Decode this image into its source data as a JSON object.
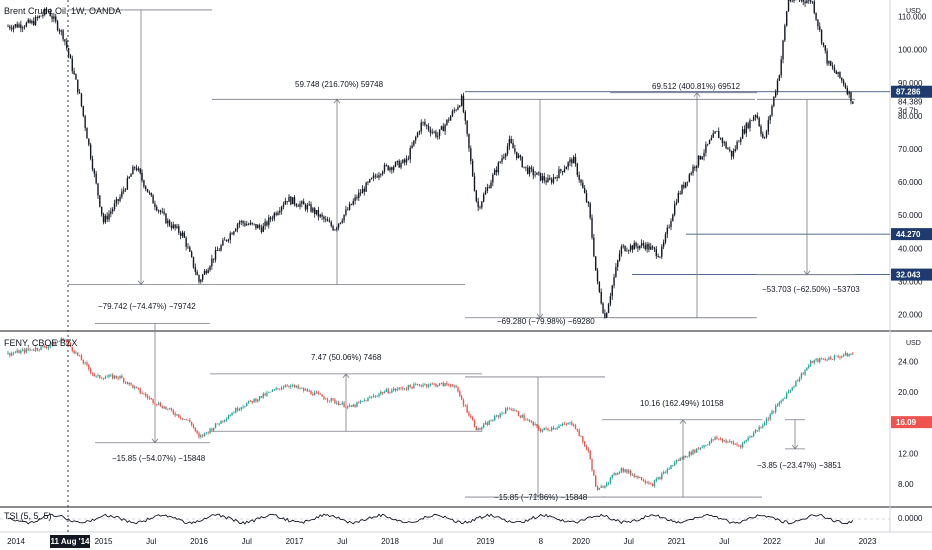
{
  "chart_data": [
    {
      "type": "candlestick",
      "title": "Brent Crude Oil, 1W, OANDA",
      "currency": "USD",
      "y_ticks": [
        "110.000",
        "100.000",
        "90.000",
        "80.000",
        "70.000",
        "60.000",
        "50.000",
        "40.000",
        "30.000",
        "20.000"
      ],
      "y_tick_values": [
        110,
        100,
        90,
        80,
        70,
        60,
        50,
        40,
        30,
        20
      ],
      "ylim": [
        15,
        115
      ],
      "price_path": [
        [
          "2014-01",
          107
        ],
        [
          "2014-04",
          108
        ],
        [
          "2014-06",
          112
        ],
        [
          "2014-08",
          104
        ],
        [
          "2014-10",
          86
        ],
        [
          "2014-12",
          60
        ],
        [
          "2015-01",
          48
        ],
        [
          "2015-03",
          55
        ],
        [
          "2015-05",
          65
        ],
        [
          "2015-07",
          55
        ],
        [
          "2015-09",
          48
        ],
        [
          "2015-11",
          44
        ],
        [
          "2016-01",
          30
        ],
        [
          "2016-03",
          38
        ],
        [
          "2016-06",
          48
        ],
        [
          "2016-09",
          46
        ],
        [
          "2016-12",
          55
        ],
        [
          "2017-03",
          52
        ],
        [
          "2017-06",
          46
        ],
        [
          "2017-09",
          56
        ],
        [
          "2017-12",
          64
        ],
        [
          "2018-03",
          66
        ],
        [
          "2018-05",
          78
        ],
        [
          "2018-07",
          74
        ],
        [
          "2018-10",
          85
        ],
        [
          "2018-12",
          52
        ],
        [
          "2019-02",
          62
        ],
        [
          "2019-04",
          72
        ],
        [
          "2019-06",
          64
        ],
        [
          "2019-09",
          60
        ],
        [
          "2019-12",
          67
        ],
        [
          "2020-02",
          52
        ],
        [
          "2020-03",
          30
        ],
        [
          "2020-04",
          19
        ],
        [
          "2020-06",
          40
        ],
        [
          "2020-09",
          41
        ],
        [
          "2020-11",
          38
        ],
        [
          "2021-01",
          55
        ],
        [
          "2021-03",
          64
        ],
        [
          "2021-06",
          75
        ],
        [
          "2021-08",
          68
        ],
        [
          "2021-09",
          74
        ],
        [
          "2021-11",
          81
        ],
        [
          "2021-12",
          72
        ],
        [
          "2022-02",
          94
        ],
        [
          "2022-03",
          115
        ],
        [
          "2022-06",
          115
        ],
        [
          "2022-08",
          96
        ],
        [
          "2022-10",
          90
        ],
        [
          "2022-12",
          80
        ],
        [
          "2023-02",
          82
        ]
      ],
      "price_tags": [
        {
          "label": "87.286",
          "value": 87.286,
          "color": "#1e3a6e"
        },
        {
          "label": "44.270",
          "value": 44.27,
          "color": "#1e3a6e"
        },
        {
          "label": "32.043",
          "value": 32.043,
          "color": "#1e3a6e"
        }
      ],
      "current_price": {
        "label": "84.389",
        "sub": "3d 7h",
        "value": 84.389
      },
      "measurements": [
        {
          "label": "−79.742 (−74.47%) −79742"
        },
        {
          "label": "59.748 (216.70%) 59748"
        },
        {
          "label": "−69.280 (−79.98%) −69280"
        },
        {
          "label": "69.512 (400.81%) 69512"
        },
        {
          "label": "−53.703 (−62.50%) −53703"
        }
      ]
    },
    {
      "type": "candlestick",
      "title": "FENY, CBOE BZX",
      "currency": "USD",
      "y_ticks": [
        "24.00",
        "20.00",
        "16.00",
        "12.00",
        "8.00"
      ],
      "y_tick_values": [
        24,
        20,
        16,
        12,
        8
      ],
      "ylim": [
        5,
        28
      ],
      "price_path": [
        [
          "2014-01",
          25
        ],
        [
          "2014-06",
          26
        ],
        [
          "2014-08",
          27
        ],
        [
          "2014-12",
          22
        ],
        [
          "2015-03",
          22
        ],
        [
          "2015-07",
          19
        ],
        [
          "2015-12",
          16
        ],
        [
          "2016-01",
          14
        ],
        [
          "2016-06",
          18
        ],
        [
          "2016-12",
          21
        ],
        [
          "2017-03",
          20
        ],
        [
          "2017-08",
          18
        ],
        [
          "2017-12",
          20
        ],
        [
          "2018-05",
          21
        ],
        [
          "2018-09",
          21
        ],
        [
          "2018-12",
          15
        ],
        [
          "2019-04",
          18
        ],
        [
          "2019-08",
          15
        ],
        [
          "2019-12",
          16
        ],
        [
          "2020-02",
          12
        ],
        [
          "2020-03",
          7
        ],
        [
          "2020-06",
          10
        ],
        [
          "2020-10",
          8
        ],
        [
          "2021-01",
          11
        ],
        [
          "2021-06",
          14
        ],
        [
          "2021-09",
          13
        ],
        [
          "2021-12",
          16
        ],
        [
          "2022-06",
          24
        ],
        [
          "2022-11",
          25
        ],
        [
          "2023-02",
          25
        ]
      ],
      "price_tags": [
        {
          "label": "16.09",
          "value": 16.09,
          "color": "#ef5350"
        }
      ],
      "measurements": [
        {
          "label": "7.47 (50.06%) 7468"
        },
        {
          "label": "−15.85 (−54.07%) −15848"
        },
        {
          "label": "−15.85 (−71.86%) −15848"
        },
        {
          "label": "10.16 (162.49%) 10158"
        },
        {
          "label": "−3.85 (−23.47%) −3851"
        }
      ]
    },
    {
      "type": "line",
      "title": "TSI (5, 5, 5)",
      "y_ticks": [
        "0.0000"
      ],
      "y_tick_values": [
        0
      ]
    }
  ],
  "x_axis": {
    "ticks": [
      "2014",
      "2015",
      "Jul",
      "2016",
      "Jul",
      "2017",
      "Jul",
      "2018",
      "Jul",
      "2019",
      "8",
      "2020",
      "Jul",
      "2021",
      "Jul",
      "2022",
      "Jul",
      "2023"
    ],
    "crosshair_label": "11 Aug '14"
  },
  "colors": {
    "up": "#26a69a",
    "down": "#ef5350",
    "tag": "#1e3a6e",
    "feny_tag": "#ef5350"
  }
}
